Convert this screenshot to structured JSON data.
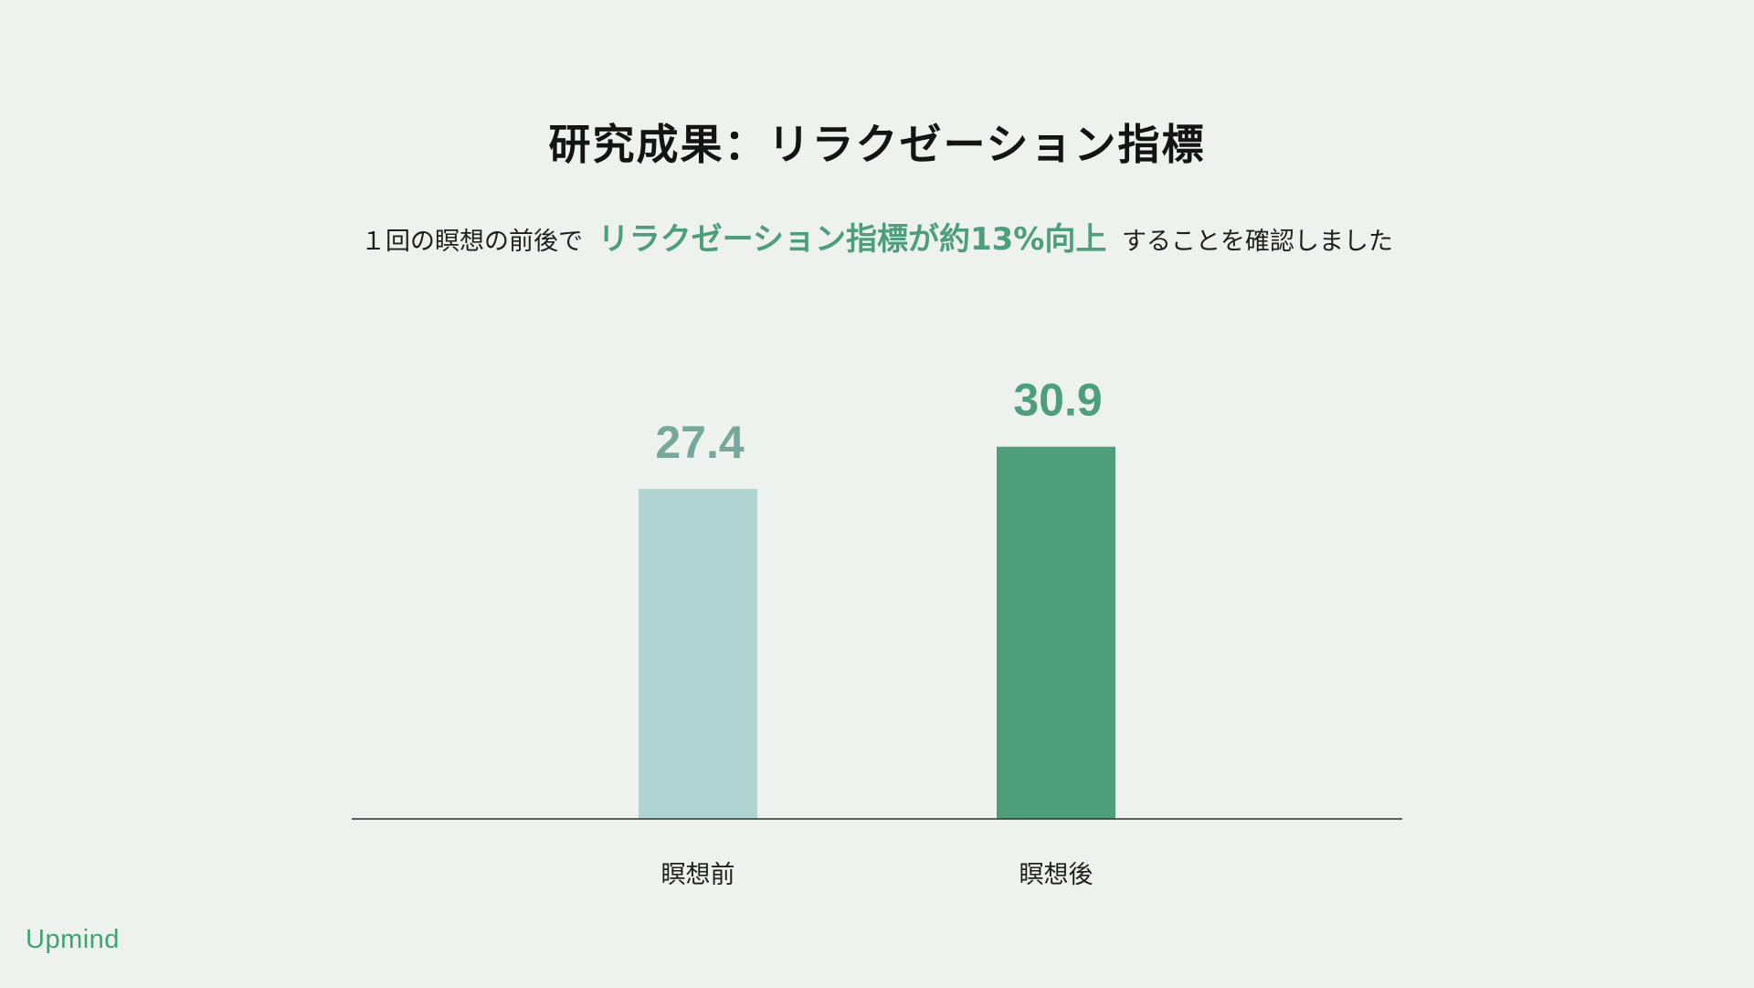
{
  "header": {
    "title": "研究成果：リラクゼーション指標",
    "subtitle_before": "１回の瞑想の前後で",
    "subtitle_highlight": "リラクゼーション指標が約13%向上",
    "subtitle_after": "することを確認しました"
  },
  "brand": {
    "logo_text": "Upmind"
  },
  "colors": {
    "background": "#edf2ee",
    "accent": "#4e9d7b",
    "bar_before": "#b0d4d1",
    "bar_after": "#4f9e7b",
    "value_before": "#76a89c",
    "value_after": "#4e9d7b",
    "logo": "#3fa46f"
  },
  "chart_data": {
    "type": "bar",
    "categories": [
      "瞑想前",
      "瞑想後"
    ],
    "values": [
      27.4,
      30.9
    ],
    "value_labels": [
      "27.4",
      "30.9"
    ],
    "ylim": [
      0,
      33
    ],
    "grid": false,
    "legend": "none"
  }
}
